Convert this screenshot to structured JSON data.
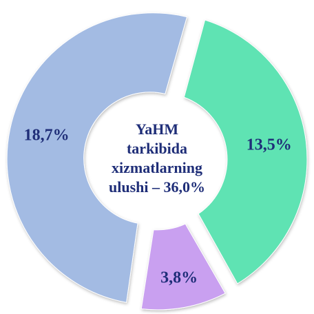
{
  "chart_data": {
    "type": "donut",
    "center_label": [
      "YaHM",
      "tarkibida",
      "xizmatlarning",
      "ulushi – 36,0%"
    ],
    "values": [
      13.5,
      3.8,
      18.7
    ],
    "value_labels": [
      "13,5%",
      "3,8%",
      "18,7%"
    ],
    "colors": [
      "#5fe3b3",
      "#c9a0f0",
      "#a3bbe3"
    ]
  }
}
